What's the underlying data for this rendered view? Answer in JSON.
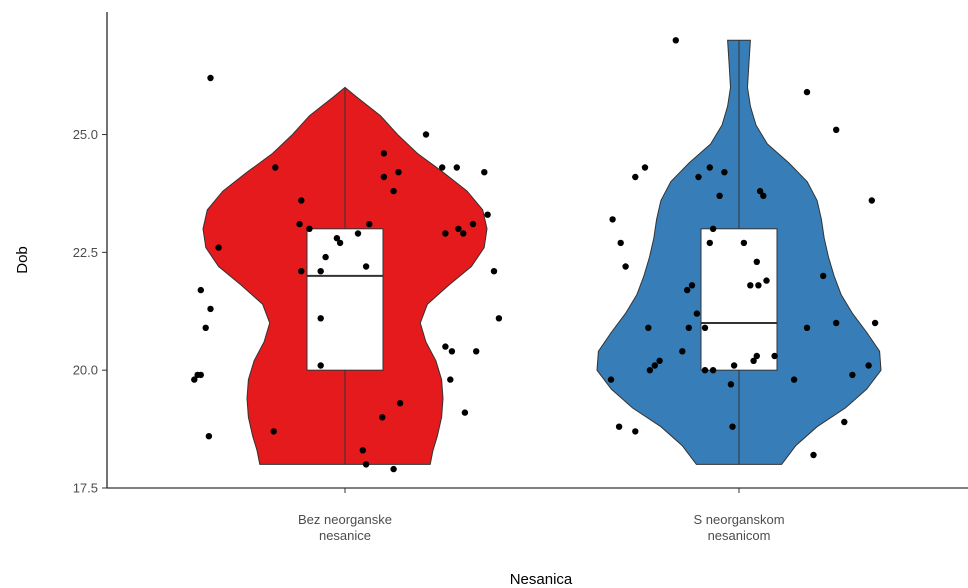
{
  "chart_data": {
    "type": "violin",
    "title": "",
    "xlabel": "Nesanica",
    "ylabel": "Dob",
    "ylim": [
      17.5,
      27.6
    ],
    "yticks": [
      17.5,
      20.0,
      22.5,
      25.0
    ],
    "grid": false,
    "legend": "none",
    "categories": [
      {
        "id": "bez",
        "label_lines": [
          "Bez neorganske",
          "nesanice"
        ]
      },
      {
        "id": "s",
        "label_lines": [
          "S neorganskom",
          "nesanicom"
        ]
      }
    ],
    "series": [
      {
        "category": "bez",
        "color": "#e41a1c",
        "violin": {
          "min": 18,
          "max": 26,
          "profile": [
            [
              18.0,
              0.6
            ],
            [
              18.3,
              0.62
            ],
            [
              18.6,
              0.65
            ],
            [
              19.0,
              0.68
            ],
            [
              19.4,
              0.69
            ],
            [
              19.8,
              0.68
            ],
            [
              20.2,
              0.64
            ],
            [
              20.6,
              0.57
            ],
            [
              21.0,
              0.53
            ],
            [
              21.4,
              0.58
            ],
            [
              21.8,
              0.73
            ],
            [
              22.2,
              0.89
            ],
            [
              22.6,
              0.98
            ],
            [
              23.0,
              1.0
            ],
            [
              23.4,
              0.97
            ],
            [
              23.8,
              0.86
            ],
            [
              24.2,
              0.69
            ],
            [
              24.6,
              0.51
            ],
            [
              25.0,
              0.37
            ],
            [
              25.4,
              0.25
            ],
            [
              25.8,
              0.08
            ],
            [
              26.0,
              0.0
            ]
          ]
        },
        "box": {
          "q1": 20,
          "median": 22,
          "q3": 23,
          "whisker_low": 18,
          "whisker_high": 26
        },
        "points": [
          [
            -0.83,
            26.2
          ],
          [
            -0.43,
            24.3
          ],
          [
            -0.78,
            22.6
          ],
          [
            -0.27,
            23.6
          ],
          [
            -0.28,
            23.1
          ],
          [
            -0.22,
            23.0
          ],
          [
            -0.27,
            22.1
          ],
          [
            -0.15,
            22.1
          ],
          [
            -0.15,
            21.1
          ],
          [
            -0.05,
            22.8
          ],
          [
            -0.12,
            22.4
          ],
          [
            -0.03,
            22.7
          ],
          [
            0.08,
            22.9
          ],
          [
            0.15,
            23.1
          ],
          [
            0.13,
            22.2
          ],
          [
            -0.89,
            21.7
          ],
          [
            -0.83,
            21.3
          ],
          [
            -0.86,
            20.9
          ],
          [
            -0.91,
            19.9
          ],
          [
            -0.93,
            19.8
          ],
          [
            -0.89,
            19.9
          ],
          [
            -0.84,
            18.6
          ],
          [
            -0.44,
            18.7
          ],
          [
            -0.15,
            20.1
          ],
          [
            0.11,
            18.3
          ],
          [
            0.13,
            18.0
          ],
          [
            0.3,
            17.9
          ],
          [
            0.23,
            19.0
          ],
          [
            0.34,
            19.3
          ],
          [
            0.24,
            24.6
          ],
          [
            0.24,
            24.1
          ],
          [
            0.33,
            24.2
          ],
          [
            0.3,
            23.8
          ],
          [
            0.5,
            25.0
          ],
          [
            0.6,
            24.3
          ],
          [
            0.69,
            24.3
          ],
          [
            0.86,
            24.2
          ],
          [
            0.88,
            23.3
          ],
          [
            0.79,
            23.1
          ],
          [
            0.7,
            23.0
          ],
          [
            0.62,
            22.9
          ],
          [
            0.73,
            22.9
          ],
          [
            0.92,
            22.1
          ],
          [
            0.95,
            21.1
          ],
          [
            0.66,
            20.4
          ],
          [
            0.65,
            19.8
          ],
          [
            0.62,
            20.5
          ],
          [
            0.81,
            20.4
          ],
          [
            0.74,
            19.1
          ]
        ]
      },
      {
        "category": "s",
        "color": "#377eb8",
        "violin": {
          "min": 18,
          "max": 27,
          "profile": [
            [
              18.0,
              0.3
            ],
            [
              18.4,
              0.4
            ],
            [
              18.8,
              0.55
            ],
            [
              19.2,
              0.75
            ],
            [
              19.6,
              0.9
            ],
            [
              20.0,
              1.0
            ],
            [
              20.4,
              0.99
            ],
            [
              20.8,
              0.9
            ],
            [
              21.2,
              0.8
            ],
            [
              21.6,
              0.72
            ],
            [
              22.0,
              0.67
            ],
            [
              22.4,
              0.63
            ],
            [
              22.8,
              0.6
            ],
            [
              23.2,
              0.58
            ],
            [
              23.6,
              0.55
            ],
            [
              24.0,
              0.48
            ],
            [
              24.4,
              0.35
            ],
            [
              24.8,
              0.2
            ],
            [
              25.2,
              0.12
            ],
            [
              25.6,
              0.08
            ],
            [
              26.0,
              0.06
            ],
            [
              26.5,
              0.07
            ],
            [
              27.0,
              0.08
            ]
          ]
        },
        "box": {
          "q1": 20,
          "median": 21,
          "q3": 23,
          "whisker_low": 18,
          "whisker_high": 27
        },
        "points": [
          [
            -0.39,
            27.0
          ],
          [
            -0.58,
            24.3
          ],
          [
            -0.64,
            24.1
          ],
          [
            -0.25,
            24.1
          ],
          [
            -0.18,
            24.3
          ],
          [
            -0.09,
            24.2
          ],
          [
            -0.12,
            23.7
          ],
          [
            0.13,
            23.8
          ],
          [
            0.15,
            23.7
          ],
          [
            -0.78,
            23.2
          ],
          [
            -0.73,
            22.7
          ],
          [
            -0.7,
            22.2
          ],
          [
            -0.16,
            23.0
          ],
          [
            -0.18,
            22.7
          ],
          [
            0.03,
            22.7
          ],
          [
            0.11,
            22.3
          ],
          [
            0.07,
            21.8
          ],
          [
            0.17,
            21.9
          ],
          [
            0.12,
            21.8
          ],
          [
            -0.32,
            21.7
          ],
          [
            -0.29,
            21.8
          ],
          [
            -0.26,
            21.2
          ],
          [
            -0.56,
            20.9
          ],
          [
            -0.31,
            20.9
          ],
          [
            -0.21,
            20.9
          ],
          [
            -0.35,
            20.4
          ],
          [
            -0.49,
            20.2
          ],
          [
            -0.55,
            20.0
          ],
          [
            -0.52,
            20.1
          ],
          [
            -0.21,
            20.0
          ],
          [
            -0.16,
            20.0
          ],
          [
            -0.05,
            19.7
          ],
          [
            -0.03,
            20.1
          ],
          [
            0.09,
            20.2
          ],
          [
            0.11,
            20.3
          ],
          [
            0.22,
            20.3
          ],
          [
            -0.79,
            19.8
          ],
          [
            -0.74,
            18.8
          ],
          [
            -0.64,
            18.7
          ],
          [
            -0.04,
            18.8
          ],
          [
            0.42,
            20.9
          ],
          [
            0.6,
            21.0
          ],
          [
            0.52,
            22.0
          ],
          [
            0.84,
            21.0
          ],
          [
            0.8,
            20.1
          ],
          [
            0.34,
            19.8
          ],
          [
            0.46,
            18.2
          ],
          [
            0.65,
            18.9
          ],
          [
            0.6,
            25.1
          ],
          [
            0.42,
            25.9
          ],
          [
            0.7,
            19.9
          ],
          [
            0.82,
            23.6
          ]
        ]
      }
    ]
  }
}
